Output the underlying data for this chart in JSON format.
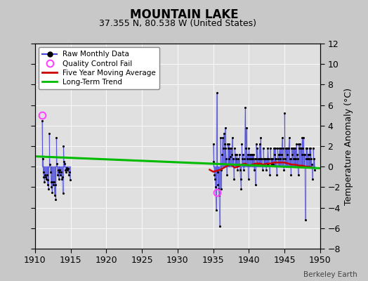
{
  "title": "MOUNTAIN LAKE",
  "subtitle": "37.355 N, 80.538 W (United States)",
  "ylabel": "Temperature Anomaly (°C)",
  "xlabel_credit": "Berkeley Earth",
  "xlim": [
    1910,
    1950
  ],
  "ylim": [
    -8,
    12
  ],
  "yticks": [
    -8,
    -6,
    -4,
    -2,
    0,
    2,
    4,
    6,
    8,
    10,
    12
  ],
  "xticks": [
    1910,
    1915,
    1920,
    1925,
    1930,
    1935,
    1940,
    1945,
    1950
  ],
  "background_color": "#c8c8c8",
  "plot_bg_color": "#e0e0e0",
  "raw_data_segments": [
    {
      "years": [
        1911.0,
        1911.083,
        1911.167,
        1911.25,
        1911.333,
        1911.417,
        1911.5,
        1911.583,
        1911.667,
        1911.75,
        1911.833,
        1911.917
      ],
      "values": [
        4.5,
        0.8,
        -0.5,
        -1.0,
        -1.5,
        -0.8,
        -1.0,
        -1.2,
        -0.8,
        -1.8,
        -1.3,
        -2.2
      ]
    },
    {
      "years": [
        1912.0,
        1912.083,
        1912.167,
        1912.25,
        1912.333,
        1912.417,
        1912.5,
        1912.583,
        1912.667,
        1912.75,
        1912.833,
        1912.917
      ],
      "values": [
        3.2,
        0.2,
        -0.5,
        -1.5,
        -2.0,
        -2.5,
        -1.5,
        -1.8,
        -1.5,
        -2.8,
        -1.8,
        -3.2
      ]
    },
    {
      "years": [
        1913.0,
        1913.083,
        1913.167,
        1913.25,
        1913.333,
        1913.417,
        1913.5,
        1913.583,
        1913.667,
        1913.75,
        1913.833,
        1913.917
      ],
      "values": [
        2.8,
        0.3,
        -0.8,
        -0.3,
        -1.2,
        -0.5,
        -0.3,
        -0.8,
        -0.5,
        -1.2,
        -1.0,
        -2.6
      ]
    },
    {
      "years": [
        1914.0,
        1914.083,
        1914.167,
        1914.25,
        1914.333,
        1914.417,
        1914.5,
        1914.583,
        1914.667,
        1914.75,
        1914.833,
        1914.917
      ],
      "values": [
        2.0,
        0.5,
        0.3,
        -0.3,
        -0.5,
        -0.2,
        -0.1,
        -0.3,
        -0.2,
        -0.8,
        -0.5,
        -1.3
      ]
    },
    {
      "years": [
        1935.0,
        1935.083,
        1935.167,
        1935.25,
        1935.333,
        1935.417,
        1935.5,
        1935.583,
        1935.667,
        1935.75,
        1935.833,
        1935.917
      ],
      "values": [
        2.2,
        0.5,
        -0.8,
        -1.2,
        -2.0,
        -4.2,
        7.2,
        -0.5,
        -1.8,
        -2.2,
        -2.8,
        -5.8
      ]
    },
    {
      "years": [
        1936.0,
        1936.083,
        1936.167,
        1936.25,
        1936.333,
        1936.417,
        1936.5,
        1936.583,
        1936.667,
        1936.75,
        1936.833,
        1936.917
      ],
      "values": [
        2.8,
        -2.2,
        -0.3,
        1.2,
        2.8,
        1.8,
        3.2,
        2.2,
        3.8,
        1.8,
        0.8,
        -0.8
      ]
    },
    {
      "years": [
        1937.0,
        1937.083,
        1937.167,
        1937.25,
        1937.333,
        1937.417,
        1937.5,
        1937.583,
        1937.667,
        1937.75,
        1937.833,
        1937.917
      ],
      "values": [
        2.2,
        1.8,
        2.2,
        0.8,
        1.8,
        1.0,
        1.8,
        1.2,
        2.8,
        0.8,
        0.8,
        -1.2
      ]
    },
    {
      "years": [
        1938.0,
        1938.083,
        1938.167,
        1938.25,
        1938.333,
        1938.417,
        1938.5,
        1938.583,
        1938.667,
        1938.75,
        1938.833,
        1938.917
      ],
      "values": [
        1.8,
        1.2,
        0.8,
        0.2,
        1.2,
        -0.3,
        0.8,
        0.2,
        1.2,
        -0.3,
        -1.2,
        -2.2
      ]
    },
    {
      "years": [
        1939.0,
        1939.083,
        1939.167,
        1939.25,
        1939.333,
        1939.417,
        1939.5,
        1939.583,
        1939.667,
        1939.75,
        1939.833,
        1939.917
      ],
      "values": [
        2.2,
        0.8,
        1.2,
        -0.3,
        0.2,
        0.8,
        5.8,
        1.8,
        3.8,
        0.8,
        1.2,
        -1.2
      ]
    },
    {
      "years": [
        1940.0,
        1940.083,
        1940.167,
        1940.25,
        1940.333,
        1940.417,
        1940.5,
        1940.583,
        1940.667,
        1940.75,
        1940.833,
        1940.917
      ],
      "values": [
        1.8,
        0.8,
        1.2,
        0.8,
        1.2,
        0.8,
        1.2,
        0.8,
        1.2,
        -0.3,
        0.8,
        -1.8
      ]
    },
    {
      "years": [
        1941.0,
        1941.083,
        1941.167,
        1941.25,
        1941.333,
        1941.417,
        1941.5,
        1941.583,
        1941.667,
        1941.75,
        1941.833,
        1941.917
      ],
      "values": [
        2.2,
        0.8,
        1.8,
        0.2,
        0.8,
        0.8,
        2.2,
        0.8,
        2.8,
        0.8,
        0.8,
        -0.3
      ]
    },
    {
      "years": [
        1942.0,
        1942.083,
        1942.167,
        1942.25,
        1942.333,
        1942.417,
        1942.5,
        1942.583,
        1942.667,
        1942.75,
        1942.833,
        1942.917
      ],
      "values": [
        1.8,
        0.8,
        0.8,
        0.8,
        0.8,
        -0.3,
        0.8,
        0.2,
        1.8,
        0.8,
        0.8,
        -0.8
      ]
    },
    {
      "years": [
        1943.0,
        1943.083,
        1943.167,
        1943.25,
        1943.333,
        1943.417,
        1943.5,
        1943.583,
        1943.667,
        1943.75,
        1943.833,
        1943.917
      ],
      "values": [
        1.8,
        0.8,
        0.8,
        0.2,
        0.8,
        0.2,
        1.8,
        1.2,
        1.8,
        0.8,
        0.8,
        -0.8
      ]
    },
    {
      "years": [
        1944.0,
        1944.083,
        1944.167,
        1944.25,
        1944.333,
        1944.417,
        1944.5,
        1944.583,
        1944.667,
        1944.75,
        1944.833,
        1944.917
      ],
      "values": [
        1.8,
        0.8,
        1.2,
        1.2,
        1.8,
        0.8,
        1.8,
        1.2,
        2.8,
        1.8,
        0.8,
        -0.3
      ]
    },
    {
      "years": [
        1945.0,
        1945.083,
        1945.167,
        1945.25,
        1945.333,
        1945.417,
        1945.5,
        1945.583,
        1945.667,
        1945.75,
        1945.833,
        1945.917
      ],
      "values": [
        5.2,
        0.8,
        1.8,
        1.8,
        1.8,
        1.2,
        1.8,
        1.8,
        2.8,
        0.8,
        0.8,
        -0.8
      ]
    },
    {
      "years": [
        1946.0,
        1946.083,
        1946.167,
        1946.25,
        1946.333,
        1946.417,
        1946.5,
        1946.583,
        1946.667,
        1946.75,
        1946.833,
        1946.917
      ],
      "values": [
        1.8,
        1.2,
        1.8,
        0.8,
        1.8,
        0.8,
        1.8,
        0.8,
        2.2,
        1.2,
        0.8,
        -0.8
      ]
    },
    {
      "years": [
        1947.0,
        1947.083,
        1947.167,
        1947.25,
        1947.333,
        1947.417,
        1947.5,
        1947.583,
        1947.667,
        1947.75,
        1947.833,
        1947.917
      ],
      "values": [
        2.2,
        1.8,
        2.2,
        1.8,
        1.8,
        1.2,
        2.8,
        1.8,
        2.8,
        1.2,
        1.2,
        -5.2
      ]
    },
    {
      "years": [
        1948.0,
        1948.083,
        1948.167,
        1948.25,
        1948.333,
        1948.417,
        1948.5,
        1948.583,
        1948.667,
        1948.75,
        1948.833,
        1948.917
      ],
      "values": [
        1.8,
        0.8,
        1.8,
        0.8,
        1.2,
        0.8,
        1.8,
        1.2,
        1.8,
        0.8,
        0.2,
        -1.2
      ]
    },
    {
      "years": [
        1949.0,
        1949.083,
        1949.167,
        1949.25
      ],
      "values": [
        1.8,
        0.8,
        0.8,
        -0.3
      ]
    }
  ],
  "qc_fail_points": [
    {
      "year": 1911.04,
      "value": 5.0
    },
    {
      "year": 1935.58,
      "value": -2.5
    }
  ],
  "five_year_ma_years": [
    1934.5,
    1935.0,
    1935.5,
    1936.0,
    1936.5,
    1937.0,
    1937.5,
    1938.0,
    1938.5,
    1939.0,
    1939.5,
    1940.0,
    1940.5,
    1941.0,
    1941.5,
    1942.0,
    1942.5,
    1943.0,
    1943.5,
    1944.0,
    1944.5,
    1945.0,
    1945.5,
    1946.0,
    1946.5,
    1947.0,
    1947.5,
    1948.0,
    1948.5,
    1949.0
  ],
  "five_year_ma_values": [
    -0.3,
    -0.5,
    -0.4,
    -0.3,
    -0.1,
    0.1,
    0.2,
    -0.1,
    0.0,
    0.2,
    0.3,
    0.1,
    0.2,
    0.3,
    0.3,
    0.2,
    0.3,
    0.3,
    0.4,
    0.4,
    0.4,
    0.4,
    0.3,
    0.2,
    0.2,
    0.1,
    0.1,
    0.0,
    0.0,
    -0.1
  ],
  "trend_line_x": [
    1910,
    1950
  ],
  "trend_line_y": [
    1.0,
    -0.15
  ],
  "colors": {
    "raw_line": "#4444dd",
    "raw_line_alpha": 0.7,
    "raw_dots": "#000000",
    "qc_fail": "#ff44ff",
    "five_year_ma": "#cc0000",
    "trend": "#00bb00",
    "grid": "#ffffff"
  },
  "figsize": [
    5.24,
    4.0
  ],
  "dpi": 100
}
